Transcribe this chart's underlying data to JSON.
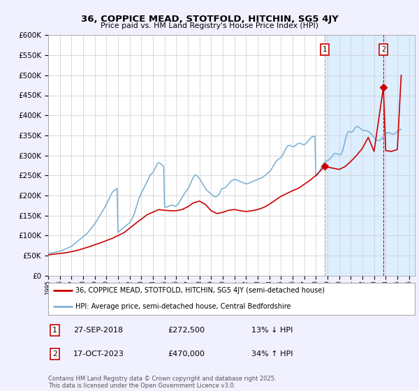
{
  "title": "36, COPPICE MEAD, STOTFOLD, HITCHIN, SG5 4JY",
  "subtitle": "Price paid vs. HM Land Registry's House Price Index (HPI)",
  "ylim": [
    0,
    600000
  ],
  "yticks": [
    0,
    50000,
    100000,
    150000,
    200000,
    250000,
    300000,
    350000,
    400000,
    450000,
    500000,
    550000,
    600000
  ],
  "xlim_start": 1995.0,
  "xlim_end": 2026.5,
  "red_line_label": "36, COPPICE MEAD, STOTFOLD, HITCHIN, SG5 4JY (semi-detached house)",
  "blue_line_label": "HPI: Average price, semi-detached house, Central Bedfordshire",
  "footer": "Contains HM Land Registry data © Crown copyright and database right 2025.\nThis data is licensed under the Open Government Licence v3.0.",
  "marker1_x": 2018.75,
  "marker1_y": 272500,
  "marker1_date": "27-SEP-2018",
  "marker1_price": "£272,500",
  "marker1_hpi": "13% ↓ HPI",
  "marker2_x": 2023.8,
  "marker2_y": 470000,
  "marker2_date": "17-OCT-2023",
  "marker2_price": "£470,000",
  "marker2_hpi": "34% ↑ HPI",
  "red_color": "#cc0000",
  "blue_color": "#7fb3d3",
  "shade_color": "#ddeeff",
  "marker1_vline_color": "#aaaaaa",
  "marker2_vline_color": "#cc0000",
  "bg_color": "#f0f0ff",
  "plot_bg": "#ffffff",
  "hpi_x": [
    1995.0,
    1995.08,
    1995.17,
    1995.25,
    1995.33,
    1995.42,
    1995.5,
    1995.58,
    1995.67,
    1995.75,
    1995.83,
    1995.92,
    1996.0,
    1996.08,
    1996.17,
    1996.25,
    1996.33,
    1996.42,
    1996.5,
    1996.58,
    1996.67,
    1996.75,
    1996.83,
    1996.92,
    1997.0,
    1997.08,
    1997.17,
    1997.25,
    1997.33,
    1997.42,
    1997.5,
    1997.58,
    1997.67,
    1997.75,
    1997.83,
    1997.92,
    1998.0,
    1998.08,
    1998.17,
    1998.25,
    1998.33,
    1998.42,
    1998.5,
    1998.58,
    1998.67,
    1998.75,
    1998.83,
    1998.92,
    1999.0,
    1999.08,
    1999.17,
    1999.25,
    1999.33,
    1999.42,
    1999.5,
    1999.58,
    1999.67,
    1999.75,
    1999.83,
    1999.92,
    2000.0,
    2000.08,
    2000.17,
    2000.25,
    2000.33,
    2000.42,
    2000.5,
    2000.58,
    2000.67,
    2000.75,
    2000.83,
    2000.92,
    2001.0,
    2001.08,
    2001.17,
    2001.25,
    2001.33,
    2001.42,
    2001.5,
    2001.58,
    2001.67,
    2001.75,
    2001.83,
    2001.92,
    2002.0,
    2002.08,
    2002.17,
    2002.25,
    2002.33,
    2002.42,
    2002.5,
    2002.58,
    2002.67,
    2002.75,
    2002.83,
    2002.92,
    2003.0,
    2003.08,
    2003.17,
    2003.25,
    2003.33,
    2003.42,
    2003.5,
    2003.58,
    2003.67,
    2003.75,
    2003.83,
    2003.92,
    2004.0,
    2004.08,
    2004.17,
    2004.25,
    2004.33,
    2004.42,
    2004.5,
    2004.58,
    2004.67,
    2004.75,
    2004.83,
    2004.92,
    2005.0,
    2005.08,
    2005.17,
    2005.25,
    2005.33,
    2005.42,
    2005.5,
    2005.58,
    2005.67,
    2005.75,
    2005.83,
    2005.92,
    2006.0,
    2006.08,
    2006.17,
    2006.25,
    2006.33,
    2006.42,
    2006.5,
    2006.58,
    2006.67,
    2006.75,
    2006.83,
    2006.92,
    2007.0,
    2007.08,
    2007.17,
    2007.25,
    2007.33,
    2007.42,
    2007.5,
    2007.58,
    2007.67,
    2007.75,
    2007.83,
    2007.92,
    2008.0,
    2008.08,
    2008.17,
    2008.25,
    2008.33,
    2008.42,
    2008.5,
    2008.58,
    2008.67,
    2008.75,
    2008.83,
    2008.92,
    2009.0,
    2009.08,
    2009.17,
    2009.25,
    2009.33,
    2009.42,
    2009.5,
    2009.58,
    2009.67,
    2009.75,
    2009.83,
    2009.92,
    2010.0,
    2010.08,
    2010.17,
    2010.25,
    2010.33,
    2010.42,
    2010.5,
    2010.58,
    2010.67,
    2010.75,
    2010.83,
    2010.92,
    2011.0,
    2011.08,
    2011.17,
    2011.25,
    2011.33,
    2011.42,
    2011.5,
    2011.58,
    2011.67,
    2011.75,
    2011.83,
    2011.92,
    2012.0,
    2012.08,
    2012.17,
    2012.25,
    2012.33,
    2012.42,
    2012.5,
    2012.58,
    2012.67,
    2012.75,
    2012.83,
    2012.92,
    2013.0,
    2013.08,
    2013.17,
    2013.25,
    2013.33,
    2013.42,
    2013.5,
    2013.58,
    2013.67,
    2013.75,
    2013.83,
    2013.92,
    2014.0,
    2014.08,
    2014.17,
    2014.25,
    2014.33,
    2014.42,
    2014.5,
    2014.58,
    2014.67,
    2014.75,
    2014.83,
    2014.92,
    2015.0,
    2015.08,
    2015.17,
    2015.25,
    2015.33,
    2015.42,
    2015.5,
    2015.58,
    2015.67,
    2015.75,
    2015.83,
    2015.92,
    2016.0,
    2016.08,
    2016.17,
    2016.25,
    2016.33,
    2016.42,
    2016.5,
    2016.58,
    2016.67,
    2016.75,
    2016.83,
    2016.92,
    2017.0,
    2017.08,
    2017.17,
    2017.25,
    2017.33,
    2017.42,
    2017.5,
    2017.58,
    2017.67,
    2017.75,
    2017.83,
    2017.92,
    2018.0,
    2018.08,
    2018.17,
    2018.25,
    2018.33,
    2018.42,
    2018.5,
    2018.58,
    2018.67,
    2018.75,
    2018.83,
    2018.92,
    2019.0,
    2019.08,
    2019.17,
    2019.25,
    2019.33,
    2019.42,
    2019.5,
    2019.58,
    2019.67,
    2019.75,
    2019.83,
    2019.92,
    2020.0,
    2020.08,
    2020.17,
    2020.25,
    2020.33,
    2020.42,
    2020.5,
    2020.58,
    2020.67,
    2020.75,
    2020.83,
    2020.92,
    2021.0,
    2021.08,
    2021.17,
    2021.25,
    2021.33,
    2021.42,
    2021.5,
    2021.58,
    2021.67,
    2021.75,
    2021.83,
    2021.92,
    2022.0,
    2022.08,
    2022.17,
    2022.25,
    2022.33,
    2022.42,
    2022.5,
    2022.58,
    2022.67,
    2022.75,
    2022.83,
    2022.92,
    2023.0,
    2023.08,
    2023.17,
    2023.25,
    2023.33,
    2023.42,
    2023.5,
    2023.58,
    2023.67,
    2023.75,
    2023.83,
    2023.92,
    2024.0,
    2024.08,
    2024.17,
    2024.25,
    2024.33,
    2024.42,
    2024.5,
    2024.58,
    2024.67,
    2024.75,
    2024.83,
    2024.92,
    2025.0,
    2025.08,
    2025.17,
    2025.25,
    2025.33
  ],
  "hpi_y": [
    55000,
    55500,
    56000,
    56500,
    57000,
    57500,
    58000,
    58500,
    59000,
    59500,
    60000,
    60500,
    61000,
    62000,
    63000,
    64000,
    65000,
    66000,
    67000,
    68000,
    69000,
    70000,
    71000,
    72000,
    73000,
    75000,
    77000,
    79000,
    81000,
    83000,
    85000,
    87000,
    89000,
    91000,
    93000,
    95000,
    97000,
    99000,
    101000,
    103000,
    105000,
    108000,
    111000,
    114000,
    117000,
    120000,
    123000,
    126000,
    129000,
    133000,
    137000,
    141000,
    145000,
    149000,
    153000,
    157000,
    161000,
    165000,
    169000,
    173000,
    178000,
    183000,
    188000,
    193000,
    198000,
    203000,
    208000,
    210000,
    212000,
    214000,
    216000,
    218000,
    108000,
    110000,
    112000,
    114000,
    116000,
    118000,
    120000,
    122000,
    124000,
    126000,
    128000,
    130000,
    132000,
    136000,
    140000,
    145000,
    150000,
    157000,
    164000,
    172000,
    180000,
    188000,
    195000,
    200000,
    205000,
    210000,
    215000,
    220000,
    225000,
    230000,
    235000,
    240000,
    245000,
    250000,
    253000,
    255000,
    257000,
    262000,
    267000,
    272000,
    277000,
    280000,
    282000,
    281000,
    279000,
    277000,
    275000,
    273000,
    171000,
    171000,
    171000,
    172000,
    173000,
    174000,
    175000,
    176000,
    176000,
    175000,
    174000,
    173000,
    174000,
    176000,
    179000,
    183000,
    187000,
    191000,
    195000,
    199000,
    203000,
    207000,
    210000,
    213000,
    216000,
    220000,
    225000,
    231000,
    237000,
    242000,
    247000,
    250000,
    251000,
    250000,
    248000,
    245000,
    242000,
    238000,
    234000,
    230000,
    226000,
    222000,
    218000,
    215000,
    212000,
    210000,
    208000,
    206000,
    204000,
    202000,
    200000,
    198000,
    197000,
    197000,
    198000,
    200000,
    203000,
    207000,
    212000,
    217000,
    217000,
    218000,
    219000,
    221000,
    223000,
    226000,
    229000,
    232000,
    235000,
    237000,
    238000,
    239000,
    240000,
    240000,
    239000,
    238000,
    237000,
    236000,
    235000,
    234000,
    233000,
    232000,
    231000,
    230000,
    229000,
    229000,
    230000,
    231000,
    232000,
    233000,
    234000,
    235000,
    236000,
    237000,
    238000,
    239000,
    240000,
    241000,
    242000,
    243000,
    244000,
    245000,
    247000,
    249000,
    251000,
    253000,
    255000,
    257000,
    259000,
    262000,
    265000,
    269000,
    273000,
    277000,
    281000,
    285000,
    288000,
    290000,
    292000,
    293000,
    295000,
    298000,
    302000,
    307000,
    312000,
    317000,
    321000,
    324000,
    325000,
    325000,
    324000,
    323000,
    322000,
    322000,
    323000,
    325000,
    327000,
    329000,
    330000,
    330000,
    330000,
    329000,
    328000,
    327000,
    327000,
    328000,
    330000,
    333000,
    336000,
    339000,
    342000,
    344000,
    346000,
    347000,
    348000,
    348000,
    248000,
    250000,
    253000,
    257000,
    262000,
    267000,
    272000,
    276000,
    280000,
    283000,
    285000,
    286000,
    287000,
    288000,
    290000,
    293000,
    296000,
    299000,
    302000,
    304000,
    305000,
    305000,
    304000,
    303000,
    302000,
    302000,
    303000,
    308000,
    315000,
    325000,
    335000,
    345000,
    353000,
    358000,
    360000,
    359000,
    358000,
    358000,
    360000,
    363000,
    367000,
    370000,
    372000,
    372000,
    371000,
    369000,
    367000,
    365000,
    363000,
    362000,
    362000,
    362000,
    362000,
    361000,
    360000,
    358000,
    356000,
    354000,
    351000,
    348000,
    345000,
    342000,
    340000,
    338000,
    337000,
    337000,
    338000,
    340000,
    343000,
    346000,
    349000,
    352000,
    354000,
    356000,
    357000,
    357000,
    356000,
    355000,
    354000,
    353000,
    353000,
    354000,
    356000,
    358000,
    360000,
    362000,
    363000,
    364000,
    365000
  ],
  "red_x": [
    1995.0,
    1996.5,
    1997.5,
    1998.5,
    1999.5,
    2000.5,
    2001.5,
    2002.5,
    2003.5,
    2004.5,
    2005.0,
    2005.5,
    2006.0,
    2006.5,
    2007.0,
    2007.5,
    2008.0,
    2008.5,
    2009.0,
    2009.5,
    2010.0,
    2010.5,
    2011.0,
    2011.5,
    2012.0,
    2012.5,
    2013.0,
    2013.5,
    2014.0,
    2014.5,
    2015.0,
    2015.5,
    2016.0,
    2016.5,
    2017.0,
    2017.5,
    2018.0,
    2018.75,
    2019.5,
    2020.0,
    2020.5,
    2021.0,
    2021.5,
    2022.0,
    2022.5,
    2023.0,
    2023.8,
    2024.0,
    2024.5,
    2025.0,
    2025.33
  ],
  "red_y": [
    52000,
    57000,
    63000,
    72000,
    82000,
    93000,
    107000,
    130000,
    152000,
    165000,
    163000,
    162000,
    162000,
    165000,
    172000,
    182000,
    186000,
    178000,
    162000,
    155000,
    158000,
    163000,
    165000,
    162000,
    160000,
    162000,
    165000,
    170000,
    178000,
    188000,
    198000,
    205000,
    212000,
    218000,
    228000,
    238000,
    250000,
    272500,
    268000,
    265000,
    272000,
    285000,
    300000,
    318000,
    345000,
    310000,
    470000,
    312000,
    310000,
    315000,
    500000
  ]
}
